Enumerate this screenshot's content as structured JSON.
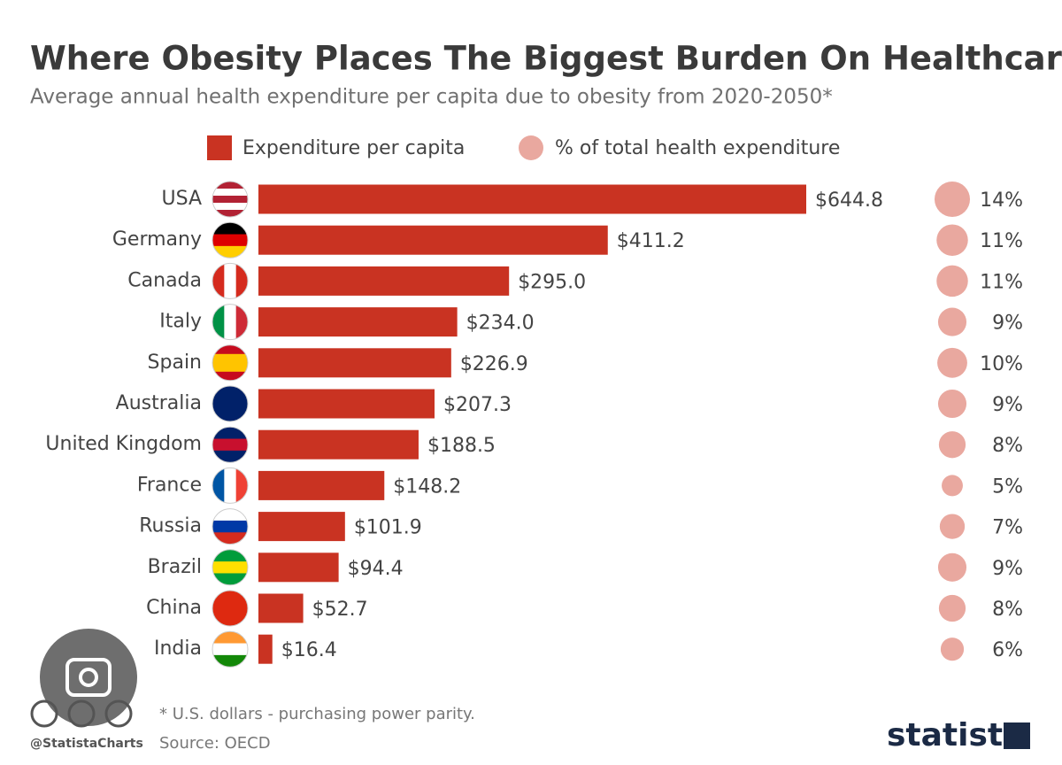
{
  "chart_data": {
    "type": "bar",
    "title": "Where Obesity Places The Biggest Burden On Healthcare",
    "subtitle": "Average annual health expenditure per capita due to obesity from 2020-2050*",
    "categories": [
      "USA",
      "Germany",
      "Canada",
      "Italy",
      "Spain",
      "Australia",
      "United Kingdom",
      "France",
      "Russia",
      "Brazil",
      "China",
      "India"
    ],
    "series": [
      {
        "name": "Expenditure per capita",
        "color": "#c93322",
        "values": [
          644.8,
          411.2,
          295.0,
          234.0,
          226.9,
          207.3,
          188.5,
          148.2,
          101.9,
          94.4,
          52.7,
          16.4
        ],
        "value_labels": [
          "$644.8",
          "$411.2",
          "$295.0",
          "$234.0",
          "$226.9",
          "$207.3",
          "$188.5",
          "$148.2",
          "$101.9",
          "$94.4",
          "$52.7",
          "$16.4"
        ]
      },
      {
        "name": "% of total health expenditure",
        "color": "#e9a89f",
        "values": [
          14,
          11,
          11,
          9,
          10,
          9,
          8,
          5,
          7,
          9,
          8,
          6
        ],
        "value_labels": [
          "14%",
          "11%",
          "11%",
          "9%",
          "10%",
          "9%",
          "8%",
          "5%",
          "7%",
          "9%",
          "8%",
          "6%"
        ]
      }
    ],
    "note": "* U.S. dollars - purchasing power parity.",
    "source": "Source: OECD",
    "credit": "@StatistaCharts",
    "logo": "statista"
  }
}
